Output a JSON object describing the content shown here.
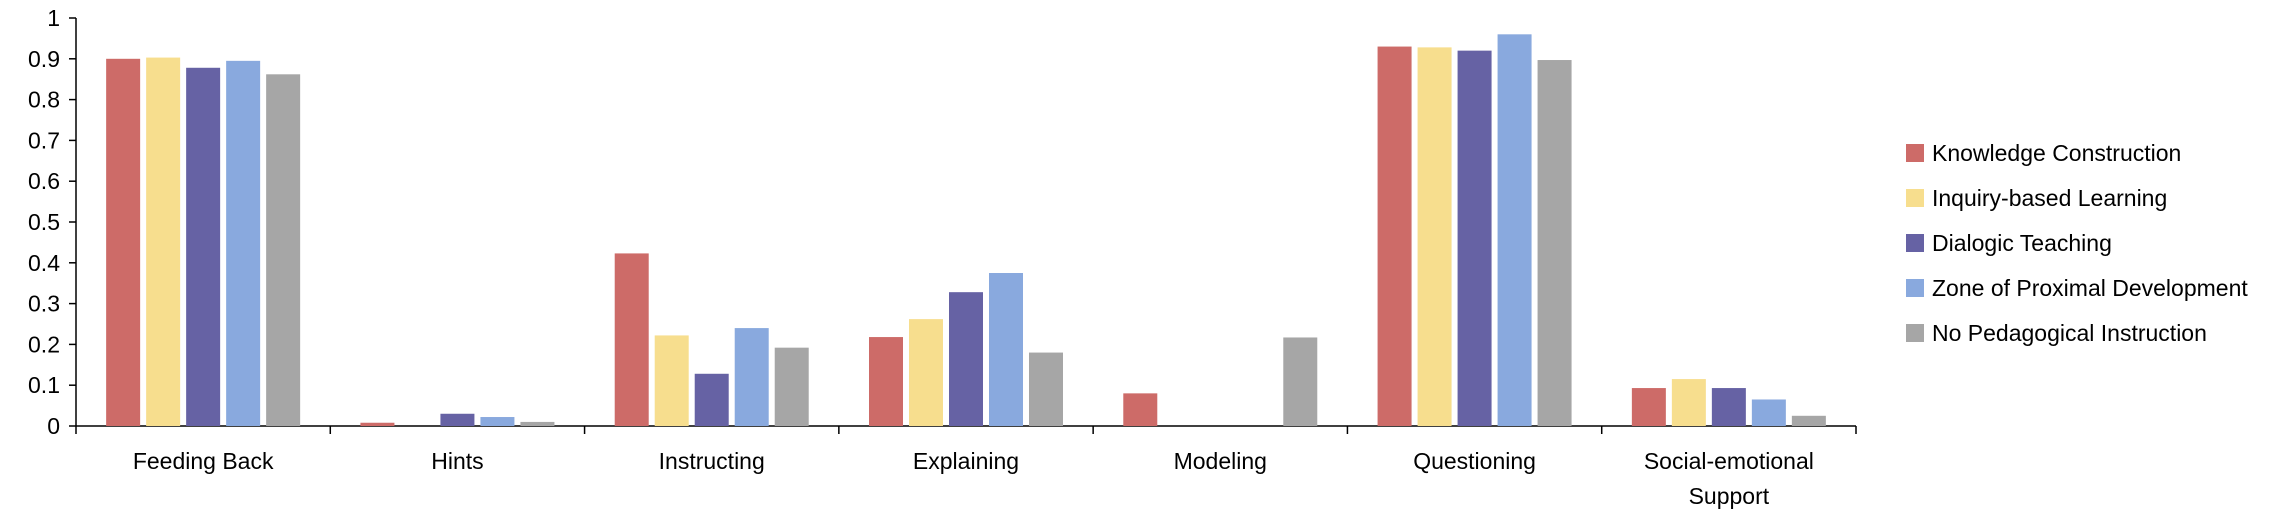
{
  "chart_data": {
    "type": "bar",
    "title": "",
    "xlabel": "",
    "ylabel": "",
    "ylim": [
      0,
      1
    ],
    "yticks": [
      0,
      0.1,
      0.2,
      0.3,
      0.4,
      0.5,
      0.6,
      0.7,
      0.8,
      0.9,
      1
    ],
    "ytick_labels": [
      "0",
      "0.1",
      "0.2",
      "0.3",
      "0.4",
      "0.5",
      "0.6",
      "0.7",
      "0.8",
      "0.9",
      "1"
    ],
    "grid": false,
    "legend_position": "right",
    "categories": [
      [
        "Feeding Back"
      ],
      [
        "Hints"
      ],
      [
        "Instructing"
      ],
      [
        "Explaining"
      ],
      [
        "Modeling"
      ],
      [
        "Questioning"
      ],
      [
        "Social-emotional",
        "Support"
      ]
    ],
    "series": [
      {
        "name": "Knowledge Construction",
        "color": "#cd6b68",
        "values": [
          0.9,
          0.008,
          0.423,
          0.218,
          0.08,
          0.93,
          0.093
        ]
      },
      {
        "name": "Inquiry-based Learning",
        "color": "#f7de8e",
        "values": [
          0.903,
          0.0,
          0.222,
          0.262,
          0.0,
          0.928,
          0.115
        ]
      },
      {
        "name": "Dialogic Teaching",
        "color": "#6662a4",
        "values": [
          0.878,
          0.03,
          0.128,
          0.328,
          0.0,
          0.92,
          0.093
        ]
      },
      {
        "name": "Zone of Proximal Development",
        "color": "#89a9de",
        "values": [
          0.895,
          0.022,
          0.24,
          0.375,
          0.0,
          0.96,
          0.065
        ]
      },
      {
        "name": "No Pedagogical Instruction",
        "color": "#a6a6a6",
        "values": [
          0.862,
          0.01,
          0.192,
          0.18,
          0.217,
          0.897,
          0.025
        ]
      }
    ]
  }
}
